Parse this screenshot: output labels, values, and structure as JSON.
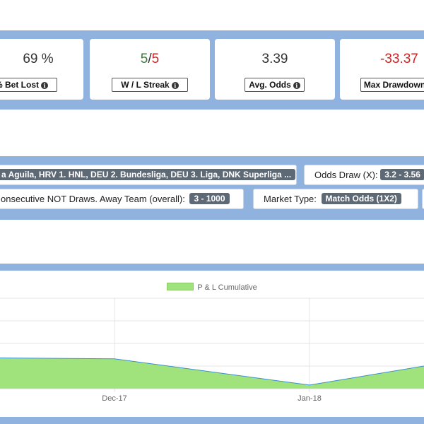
{
  "stats": [
    {
      "value": "69 %",
      "label": "% Bet Lost",
      "icon": "info-icon"
    },
    {
      "win": "5",
      "sep": "/",
      "loss": "5",
      "label": "W / L Streak",
      "icon": "info-icon"
    },
    {
      "value": "3.39",
      "label": "Avg. Odds",
      "icon": "info-icon"
    },
    {
      "value": "-33.37",
      "label": "Max Drawdown",
      "icon": "info-icon"
    }
  ],
  "filters": {
    "leagues_tag": "a Aguila, HRV 1. HNL, DEU 2. Bundesliga, DEU 3. Liga, DNK Superliga ...",
    "odds_draw_label": "Odds Draw (X):",
    "odds_draw_value": "3.2 - 3.56",
    "consecutive_label": "onsecutive NOT Draws. Away Team (overall):",
    "consecutive_value": "3 - 1000",
    "market_type_label": "Market Type:",
    "market_type_value": "Match Odds (1X2)"
  },
  "colors": {
    "band": "#8fb3de",
    "area_fill": "#a0e37c",
    "area_line": "#3a8fd0",
    "positive": "#3d7a3d",
    "negative": "#cc2222"
  },
  "chart_data": {
    "type": "area",
    "legend": [
      "P & L Cumulative"
    ],
    "x_ticks": [
      "Dec-17",
      "Jan-18"
    ],
    "series": [
      {
        "name": "P & L Cumulative",
        "points": [
          {
            "x": "start",
            "y": 0.34
          },
          {
            "x": "Dec-17",
            "y": 0.33
          },
          {
            "x": "Jan-18",
            "y": 0.04
          },
          {
            "x": "end",
            "y": 0.25
          }
        ]
      }
    ],
    "ylim": [
      0,
      1
    ],
    "grid": true,
    "legend_position": "top-center"
  }
}
